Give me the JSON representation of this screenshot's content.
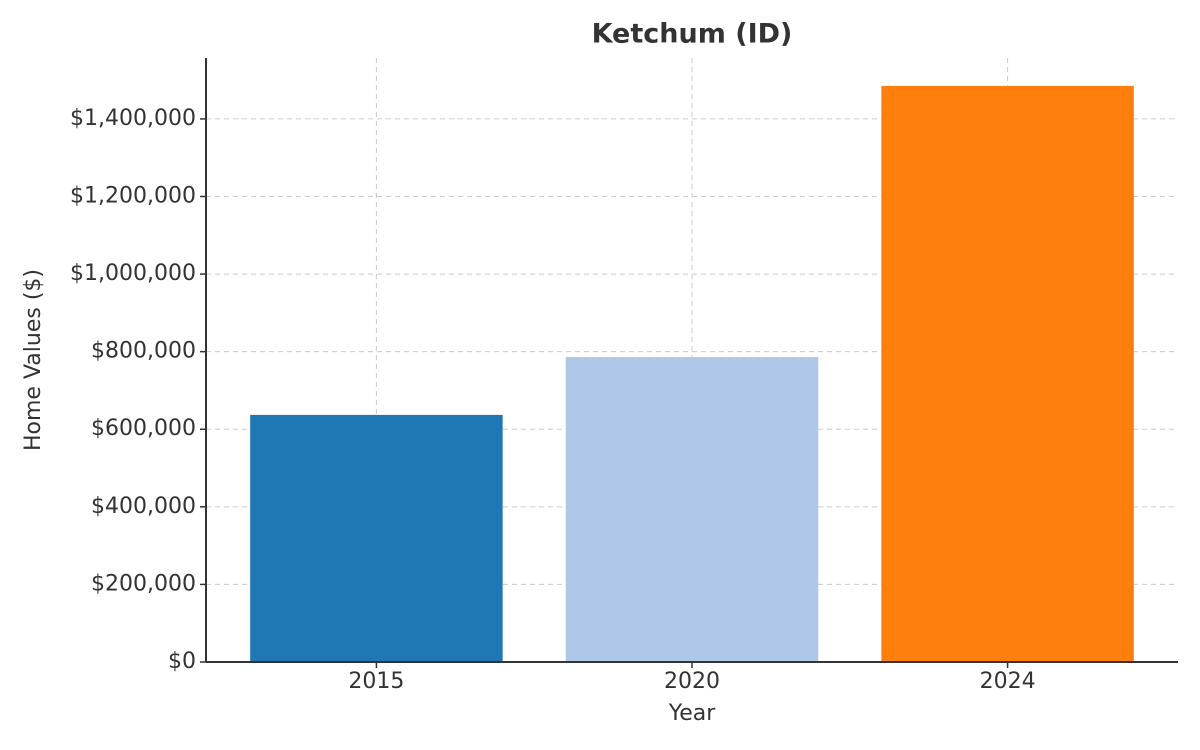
{
  "chart_data": {
    "type": "bar",
    "title": "Ketchum (ID)",
    "x_label": "Year",
    "y_label": "Home Values ($)",
    "categories": [
      "2015",
      "2020",
      "2024"
    ],
    "values": [
      637000,
      786000,
      1485000
    ],
    "colors": [
      "#1f77b4",
      "#aec7e8",
      "#ff7f0e"
    ],
    "ylim": [
      0,
      1557000
    ],
    "yticks": [
      {
        "value": 0,
        "label": "$0"
      },
      {
        "value": 200000,
        "label": "$200,000"
      },
      {
        "value": 400000,
        "label": "$400,000"
      },
      {
        "value": 600000,
        "label": "$600,000"
      },
      {
        "value": 800000,
        "label": "$800,000"
      },
      {
        "value": 1000000,
        "label": "$1,000,000"
      },
      {
        "value": 1200000,
        "label": "$1,200,000"
      },
      {
        "value": 1400000,
        "label": "$1,400,000"
      }
    ],
    "grid": true
  }
}
